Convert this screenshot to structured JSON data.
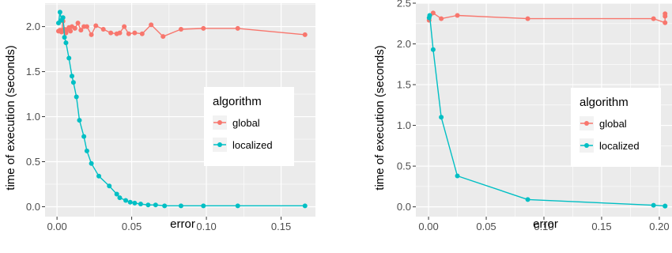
{
  "colors": {
    "global": "#F8766D",
    "localized": "#00BFC4",
    "panel": "#EBEBEB",
    "grid": "#FFFFFF"
  },
  "chart_data": [
    {
      "type": "line",
      "xlabel": "error",
      "ylabel": "time of execution (seconds)",
      "xlim": [
        -0.008,
        0.173
      ],
      "ylim": [
        -0.11,
        2.26
      ],
      "xticks": [
        0,
        0.05,
        0.1,
        0.15
      ],
      "xtick_labels": [
        "0.00",
        "0.05",
        "0.10",
        "0.15"
      ],
      "yticks": [
        0,
        0.5,
        1,
        1.5,
        2
      ],
      "ytick_labels": [
        "0.0",
        "0.5",
        "1.0",
        "1.5",
        "2.0"
      ],
      "grid": true,
      "legend": {
        "title": "algorithm",
        "position": "right",
        "entries": [
          "global",
          "localized"
        ]
      },
      "series": [
        {
          "name": "global",
          "x": [
            0.001,
            0.002,
            0.003,
            0.004,
            0.005,
            0.006,
            0.007,
            0.008,
            0.009,
            0.01,
            0.012,
            0.014,
            0.016,
            0.018,
            0.02,
            0.023,
            0.026,
            0.031,
            0.036,
            0.04,
            0.042,
            0.045,
            0.048,
            0.052,
            0.057,
            0.063,
            0.071,
            0.083,
            0.098,
            0.121,
            0.166
          ],
          "y": [
            1.95,
            1.96,
            1.94,
            2.06,
            1.97,
            1.93,
            1.97,
            1.99,
            1.95,
            2.0,
            1.98,
            2.04,
            1.96,
            2.0,
            2.0,
            1.91,
            2.01,
            1.97,
            1.93,
            1.92,
            1.93,
            2.0,
            1.92,
            1.93,
            1.92,
            2.02,
            1.89,
            1.97,
            1.98,
            1.98,
            1.91
          ]
        },
        {
          "name": "localized",
          "x": [
            0.001,
            0.002,
            0.003,
            0.004,
            0.005,
            0.006,
            0.008,
            0.01,
            0.011,
            0.013,
            0.015,
            0.018,
            0.02,
            0.023,
            0.028,
            0.035,
            0.04,
            0.042,
            0.046,
            0.049,
            0.052,
            0.056,
            0.061,
            0.066,
            0.072,
            0.083,
            0.098,
            0.121,
            0.166
          ],
          "y": [
            2.04,
            2.16,
            2.07,
            2.1,
            1.88,
            1.82,
            1.65,
            1.45,
            1.38,
            1.22,
            0.96,
            0.78,
            0.62,
            0.48,
            0.34,
            0.23,
            0.14,
            0.1,
            0.07,
            0.05,
            0.04,
            0.03,
            0.02,
            0.02,
            0.01,
            0.01,
            0.01,
            0.01,
            0.01
          ]
        }
      ]
    },
    {
      "type": "line",
      "xlabel": "error",
      "ylabel": "time of execution (seconds)",
      "xlim": [
        -0.011,
        0.211
      ],
      "ylim": [
        -0.12,
        2.5
      ],
      "xticks": [
        0,
        0.05,
        0.1,
        0.15,
        0.2
      ],
      "xtick_labels": [
        "0.00",
        "0.05",
        "0.10",
        "0.15",
        "0.20"
      ],
      "yticks": [
        0,
        0.5,
        1,
        1.5,
        2,
        2.5
      ],
      "ytick_labels": [
        "0.0",
        "0.5",
        "1.0",
        "1.5",
        "2.0",
        "2.5"
      ],
      "grid": true,
      "legend": {
        "title": "algorithm",
        "position": "right",
        "entries": [
          "global",
          "localized"
        ]
      },
      "series": [
        {
          "name": "global",
          "x": [
            0.0005,
            0.004,
            0.011,
            0.025,
            0.086,
            0.195,
            0.205,
            0.205,
            0.205
          ],
          "y": [
            2.29,
            2.38,
            2.31,
            2.35,
            2.31,
            2.31,
            2.26,
            2.34,
            2.37
          ]
        },
        {
          "name": "localized",
          "x": [
            0.0005,
            0.001,
            0.004,
            0.011,
            0.025,
            0.086,
            0.195,
            0.205,
            0.205
          ],
          "y": [
            2.32,
            2.35,
            1.93,
            1.1,
            0.38,
            0.09,
            0.02,
            0.01,
            0.01
          ]
        }
      ]
    }
  ]
}
